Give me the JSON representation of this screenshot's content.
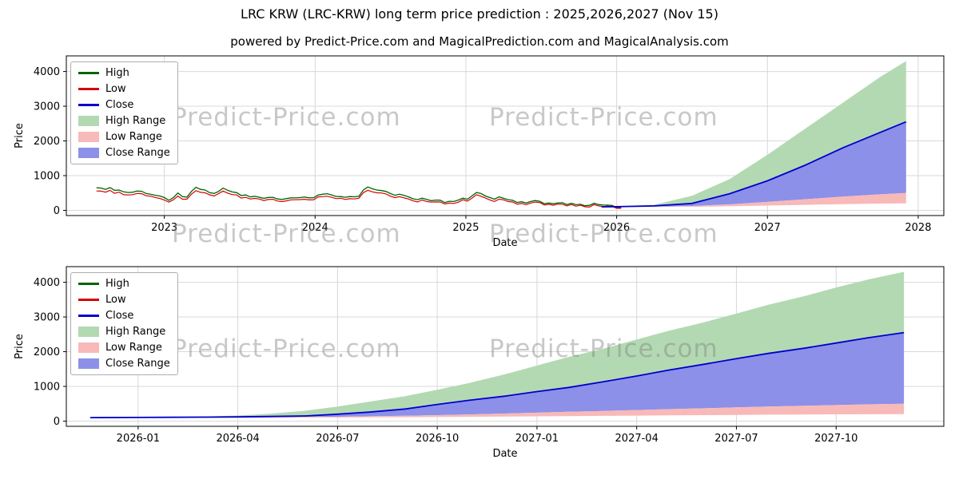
{
  "figure": {
    "title": "LRC KRW (LRC-KRW) long term price prediction : 2025,2026,2027 (Nov 15)",
    "subtitle": "powered by Predict-Price.com and MagicalPrediction.com and MagicalAnalysis.com",
    "watermark": "Predict-Price.com",
    "background": "#ffffff"
  },
  "colors": {
    "high_line": "#006400",
    "low_line": "#d40000",
    "close_line": "#0000cc",
    "high_range_fill": "#b3d9b3",
    "low_range_fill": "#f8b9b9",
    "close_range_fill": "#8c90e8",
    "grid": "#d8d8d8",
    "axis": "#000000",
    "watermark_gray": "#7d7d7d"
  },
  "legend": [
    {
      "label": "High",
      "type": "line",
      "color": "high_line"
    },
    {
      "label": "Low",
      "type": "line",
      "color": "low_line"
    },
    {
      "label": "Close",
      "type": "line",
      "color": "close_line"
    },
    {
      "label": "High Range",
      "type": "fill",
      "color": "high_range_fill"
    },
    {
      "label": "Low Range",
      "type": "fill",
      "color": "low_range_fill"
    },
    {
      "label": "Close Range",
      "type": "fill",
      "color": "close_range_fill"
    }
  ],
  "chart_data": [
    {
      "type": "line",
      "title": "",
      "xlabel": "Date",
      "ylabel": "Price",
      "xlim": [
        2022.35,
        2028.17
      ],
      "ylim": [
        -150,
        4450
      ],
      "yticks": [
        0,
        1000,
        2000,
        3000,
        4000
      ],
      "xticks": [
        {
          "v": 2023,
          "label": "2023"
        },
        {
          "v": 2024,
          "label": "2024"
        },
        {
          "v": 2025,
          "label": "2025"
        },
        {
          "v": 2026,
          "label": "2026"
        },
        {
          "v": 2027,
          "label": "2027"
        },
        {
          "v": 2028,
          "label": "2028"
        }
      ],
      "historical": {
        "x_start": 2022.55,
        "x_step": 0.06,
        "noise_amplitude": 45,
        "high": [
          680,
          620,
          590,
          555,
          525,
          560,
          480,
          430,
          300,
          460,
          380,
          640,
          540,
          460,
          600,
          520,
          450,
          390,
          340,
          330,
          345,
          320,
          330,
          340,
          370,
          470,
          400,
          380,
          430,
          390,
          700,
          580,
          500,
          470,
          420,
          370,
          310,
          280,
          260,
          270,
          290,
          330,
          480,
          410,
          350,
          310,
          280,
          260,
          240,
          230,
          210,
          200,
          190,
          180,
          165,
          150,
          140,
          125,
          115
        ],
        "low": [
          620,
          560,
          530,
          500,
          470,
          500,
          430,
          380,
          250,
          400,
          330,
          570,
          480,
          410,
          530,
          460,
          400,
          340,
          295,
          285,
          300,
          280,
          290,
          300,
          325,
          410,
          350,
          335,
          380,
          345,
          620,
          510,
          445,
          415,
          370,
          325,
          270,
          245,
          225,
          235,
          255,
          290,
          420,
          360,
          305,
          270,
          245,
          225,
          210,
          200,
          185,
          175,
          165,
          155,
          145,
          130,
          120,
          110,
          100
        ]
      },
      "forecast": {
        "x": [
          2025.9,
          2026.0,
          2026.25,
          2026.5,
          2026.75,
          2027.0,
          2027.25,
          2027.5,
          2027.75,
          2027.92
        ],
        "close": [
          100,
          105,
          128,
          200,
          480,
          850,
          1300,
          1800,
          2250,
          2550
        ],
        "high_upper": [
          102,
          115,
          160,
          420,
          900,
          1600,
          2350,
          3100,
          3850,
          4300
        ],
        "low_upper": [
          96,
          97,
          106,
          127,
          172,
          244,
          320,
          395,
          462,
          500
        ],
        "low_lower": [
          90,
          91,
          95,
          103,
          117,
          137,
          158,
          179,
          195,
          200
        ]
      }
    },
    {
      "type": "line",
      "title": "",
      "xlabel": "Date",
      "ylabel": "Price",
      "xlim": [
        2025.82,
        2028.02
      ],
      "ylim": [
        -150,
        4450
      ],
      "yticks": [
        0,
        1000,
        2000,
        3000,
        4000
      ],
      "xticks": [
        {
          "v": 2026.0,
          "label": "2026-01"
        },
        {
          "v": 2026.25,
          "label": "2026-04"
        },
        {
          "v": 2026.5,
          "label": "2026-07"
        },
        {
          "v": 2026.75,
          "label": "2026-10"
        },
        {
          "v": 2027.0,
          "label": "2027-01"
        },
        {
          "v": 2027.25,
          "label": "2027-04"
        },
        {
          "v": 2027.5,
          "label": "2027-07"
        },
        {
          "v": 2027.75,
          "label": "2027-10"
        }
      ],
      "forecast": {
        "x": [
          2025.88,
          2026.0,
          2026.08,
          2026.17,
          2026.25,
          2026.33,
          2026.42,
          2026.5,
          2026.58,
          2026.67,
          2026.75,
          2026.83,
          2026.92,
          2027.0,
          2027.08,
          2027.17,
          2027.25,
          2027.33,
          2027.42,
          2027.5,
          2027.58,
          2027.67,
          2027.75,
          2027.83,
          2027.92
        ],
        "close": [
          100,
          105,
          110,
          115,
          122,
          132,
          150,
          200,
          260,
          350,
          480,
          600,
          720,
          850,
          970,
          1140,
          1300,
          1470,
          1640,
          1800,
          1950,
          2100,
          2250,
          2400,
          2550
        ],
        "high_upper": [
          102,
          112,
          120,
          135,
          160,
          210,
          300,
          420,
          560,
          720,
          900,
          1100,
          1350,
          1600,
          1850,
          2100,
          2350,
          2600,
          2850,
          3100,
          3350,
          3600,
          3850,
          4080,
          4300
        ],
        "low_upper": [
          96,
          97,
          99,
          102,
          106,
          111,
          118,
          127,
          139,
          154,
          172,
          193,
          217,
          244,
          268,
          295,
          320,
          345,
          370,
          395,
          420,
          442,
          462,
          482,
          500
        ],
        "low_lower": [
          90,
          91,
          92,
          93,
          95,
          97,
          100,
          103,
          107,
          112,
          117,
          123,
          130,
          137,
          144,
          151,
          158,
          165,
          172,
          179,
          185,
          190,
          195,
          198,
          200
        ]
      }
    }
  ]
}
